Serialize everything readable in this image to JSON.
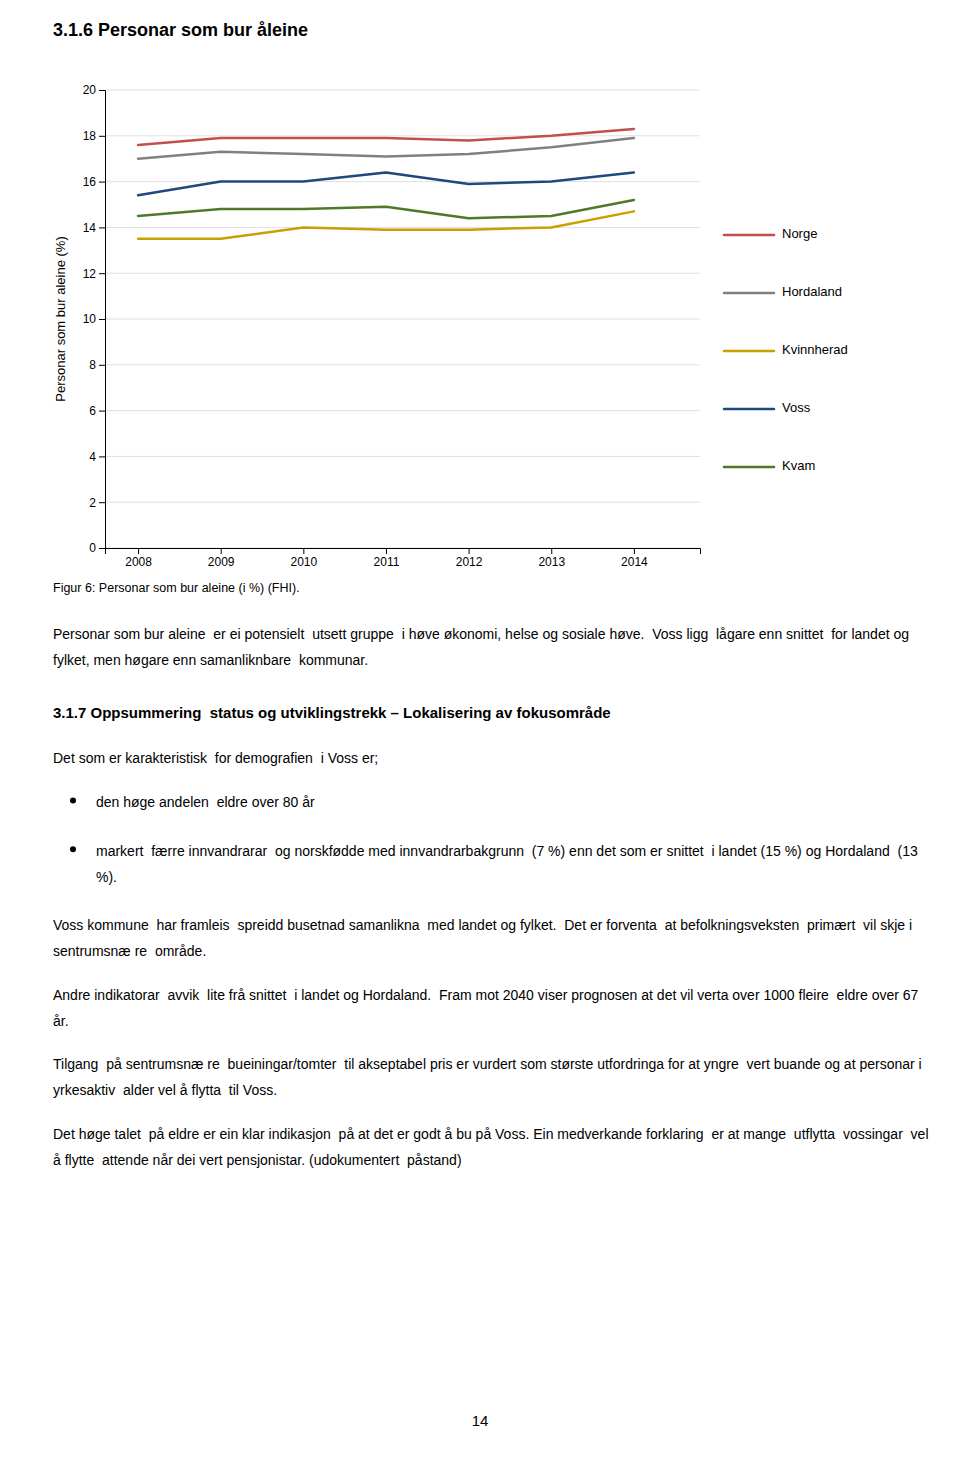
{
  "chart_data": {
    "type": "line",
    "title": "3.1.6 Personar som bur åleine",
    "ylabel": "Personar som bur aleine (%)",
    "x": [
      2008,
      2009,
      2010,
      2011,
      2012,
      2013,
      2014
    ],
    "xlim": [
      2007.6,
      2014.8
    ],
    "xticks": [
      2008,
      2009,
      2010,
      2011,
      2012,
      2013,
      2014
    ],
    "ylim": [
      0,
      20
    ],
    "yticks": [
      0,
      2,
      4,
      6,
      8,
      10,
      12,
      14,
      16,
      18,
      20
    ],
    "grid": true,
    "legend": "right",
    "series": [
      {
        "name": "Norge",
        "color": "#C0504D",
        "values": [
          17.6,
          17.9,
          17.9,
          17.9,
          17.8,
          18.0,
          18.3
        ]
      },
      {
        "name": "Hordaland",
        "color": "#808080",
        "values": [
          17.0,
          17.3,
          17.2,
          17.1,
          17.2,
          17.5,
          17.9
        ]
      },
      {
        "name": "Kvinnherad",
        "color": "#C8A000",
        "values": [
          13.5,
          13.5,
          14.0,
          13.9,
          13.9,
          14.0,
          14.7
        ]
      },
      {
        "name": "Voss",
        "color": "#1F487C",
        "values": [
          15.4,
          16.0,
          16.0,
          16.4,
          15.9,
          16.0,
          16.4
        ]
      },
      {
        "name": "Kvam",
        "color": "#4E7A27",
        "values": [
          14.5,
          14.8,
          14.8,
          14.9,
          14.4,
          14.5,
          15.2
        ]
      }
    ]
  },
  "figure_caption": "Figur 6: Personar som bur aleine (i %) (FHI).",
  "page_number": "14",
  "text_blocks": [
    {
      "kind": "paragraph",
      "text": "Personar som bur aleine  er ei potensielt  utsett gruppe  i høve økonomi, helse og sosiale høve.  Voss ligg  lågare enn snittet  for landet og fylket, men høgare enn samanliknbare  kommunar."
    },
    {
      "kind": "heading",
      "text": "3.1.7 Oppsummering  status og utviklingstrekk – Lokalisering av fokusområde"
    },
    {
      "kind": "paragraph",
      "text": "Det som er karakteristisk  for demografien  i Voss er;"
    },
    {
      "kind": "bullet",
      "text": "den høge andelen  eldre over 80 år"
    },
    {
      "kind": "bullet",
      "text": "markert  færre innvandrarar  og norskfødde med innvandrarbakgrunn  (7 %) enn det som er snittet  i landet (15 %) og Hordaland  (13 %)."
    },
    {
      "kind": "paragraph",
      "text": "Voss kommune  har framleis  spreidd busetnad samanlikna  med landet og fylket.  Det er forventa  at befolkningsveksten  primært  vil skje i sentrumsnæ re  område."
    },
    {
      "kind": "paragraph",
      "text": "Andre indikatorar  avvik  lite frå snittet  i landet og Hordaland.  Fram mot 2040 viser prognosen at det vil verta over 1000 fleire  eldre over 67 år."
    },
    {
      "kind": "paragraph",
      "text": "Tilgang  på sentrumsnæ re  bueiningar/tomter  til akseptabel pris er vurdert som største utfordringa for at yngre  vert buande og at personar i yrkesaktiv  alder vel å flytta  til Voss."
    },
    {
      "kind": "paragraph",
      "text": "Det høge talet  på eldre er ein klar indikasjon  på at det er godt å bu på Voss. Ein medverkande forklaring  er at mange  utflytta  vossingar  vel å flytte  attende når dei vert pensjonistar. (udokumentert  påstand)"
    }
  ]
}
